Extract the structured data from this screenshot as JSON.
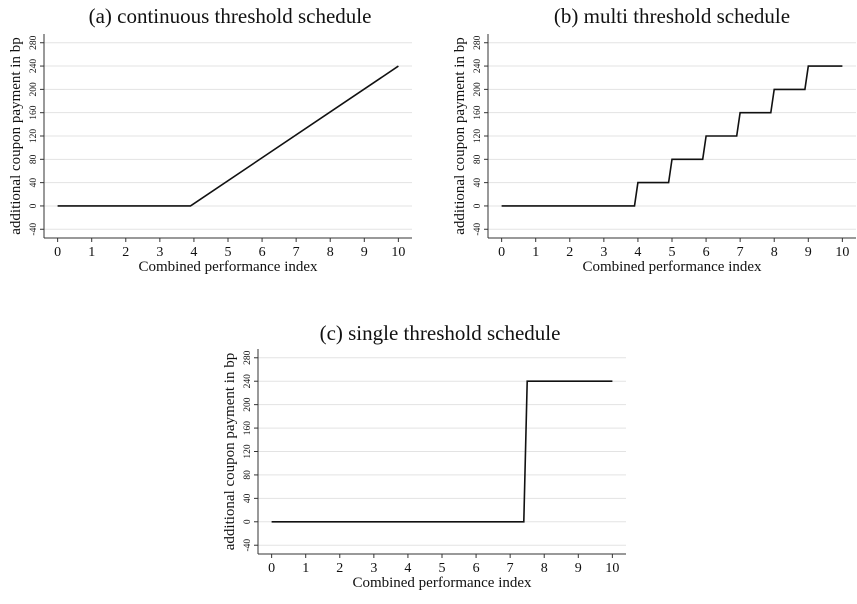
{
  "chart_data": [
    {
      "type": "line",
      "title": "(a) continuous threshold schedule",
      "xlabel": "Combined performance index",
      "ylabel": "additional coupon payment in bp",
      "x_ticks": [
        0,
        1,
        2,
        3,
        4,
        5,
        6,
        7,
        8,
        9,
        10
      ],
      "y_ticks": [
        -40,
        0,
        40,
        80,
        120,
        160,
        200,
        240,
        280
      ],
      "xlim": [
        -0.4,
        10.4
      ],
      "ylim": [
        -55,
        295
      ],
      "grid": true,
      "series": [
        {
          "x": [
            0,
            3.9,
            10
          ],
          "y": [
            0,
            0,
            240
          ]
        }
      ]
    },
    {
      "type": "line",
      "title": "(b) multi threshold schedule",
      "xlabel": "Combined performance index",
      "ylabel": "additional coupon payment in bp",
      "x_ticks": [
        0,
        1,
        2,
        3,
        4,
        5,
        6,
        7,
        8,
        9,
        10
      ],
      "y_ticks": [
        -40,
        0,
        40,
        80,
        120,
        160,
        200,
        240,
        280
      ],
      "xlim": [
        -0.4,
        10.4
      ],
      "ylim": [
        -55,
        295
      ],
      "grid": true,
      "series": [
        {
          "x": [
            0,
            3.9,
            4,
            4.9,
            5,
            5.9,
            6,
            6.9,
            7,
            7.9,
            8,
            8.9,
            9,
            10
          ],
          "y": [
            0,
            0,
            40,
            40,
            80,
            80,
            120,
            120,
            160,
            160,
            200,
            200,
            240,
            240
          ]
        }
      ]
    },
    {
      "type": "line",
      "title": "(c) single threshold schedule",
      "xlabel": "Combined performance index",
      "ylabel": "additional coupon payment in bp",
      "x_ticks": [
        0,
        1,
        2,
        3,
        4,
        5,
        6,
        7,
        8,
        9,
        10
      ],
      "y_ticks": [
        -40,
        0,
        40,
        80,
        120,
        160,
        200,
        240,
        280
      ],
      "xlim": [
        -0.4,
        10.4
      ],
      "ylim": [
        -55,
        295
      ],
      "grid": true,
      "series": [
        {
          "x": [
            0,
            7.4,
            7.5,
            10
          ],
          "y": [
            0,
            0,
            240,
            240
          ]
        }
      ]
    }
  ]
}
